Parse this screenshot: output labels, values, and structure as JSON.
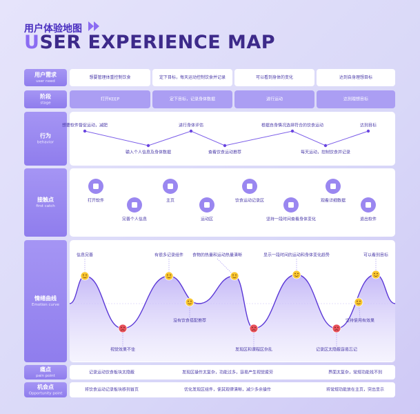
{
  "header": {
    "title": "用户体验地图",
    "subtitle": "USER EXPERIENCE MAP"
  },
  "rows": [
    {
      "cn": "用户需求",
      "en": "user need"
    },
    {
      "cn": "阶段",
      "en": "stage"
    },
    {
      "cn": "行为",
      "en": "behavior"
    },
    {
      "cn": "接触点",
      "en": "first catch"
    },
    {
      "cn": "情绪曲线",
      "en": "Emotion curve"
    },
    {
      "cn": "痛点",
      "en": "pain point"
    },
    {
      "cn": "机会点",
      "en": "Opportunity point"
    }
  ],
  "needs": [
    "想要管理体重控制饮食",
    "定下目标，每天运动控制饮食并记录",
    "可以看到身体的变化",
    "达到自身理想目标"
  ],
  "stages": [
    "打开KEEP",
    "定下目标，记录身体数据",
    "进行运动",
    "达到理想目标"
  ],
  "behaviors": [
    "想要软件督促运动，减肥",
    "输入个人信息及身体数据",
    "进行身体评估",
    "查看饮食运动推荐",
    "根据自身情况选择符合的饮食运动",
    "每天运动，控制饮食并记录",
    "达到目标"
  ],
  "touchpoints": [
    "打开软件",
    "完善个人信息",
    "主页",
    "运动区",
    "饮食运动记录区",
    "坚持一段时间查看身体变化",
    "观看详细数据",
    "退出软件"
  ],
  "emotions": [
    "信息完善",
    "视觉效果不佳",
    "有很多记录组件",
    "没有饮食搭配推荐",
    "食物的热量和运动热量清晰",
    "发现区和课程区杂乱",
    "显示一段时间的运动和身体变化趋势",
    "记录区太隐蔽容易忘记",
    "坚持使用有效果",
    "可以看到目标"
  ],
  "pain_points": [
    "记录运动饮食板块太隐蔽",
    "发现区操作太复杂，功能过多，容易产生视觉疲劳",
    "界面太复杂，常规功能找不到"
  ],
  "opportunities": [
    "将饮食运动记录板块移到首页",
    "优化发现区组件，使其观律清晰，减少多余操作",
    "将常规功能放在主页，突出显示"
  ]
}
